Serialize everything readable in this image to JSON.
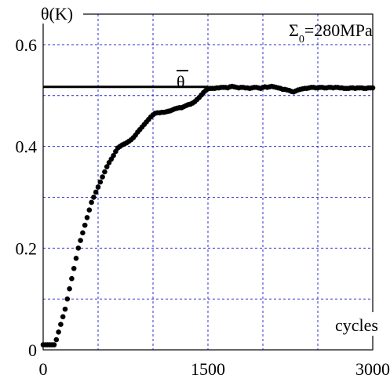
{
  "chart_data": {
    "type": "scatter",
    "ylabel": "θ(K)",
    "xlabel": "cycles",
    "annotation": "Σ₀=280MPa",
    "annotation_main": "Σ",
    "annotation_sub": "0",
    "annotation_rest": "=280MPa",
    "mean_label": "θ",
    "xlim": [
      0,
      3000
    ],
    "ylim": [
      0,
      0.66
    ],
    "x_ticks": [
      0,
      1500,
      3000
    ],
    "x_tick_labels": [
      "0",
      "1500",
      "3000"
    ],
    "y_ticks": [
      0,
      0.2,
      0.4,
      0.6
    ],
    "y_tick_labels": [
      "0",
      "0.2",
      "0.4",
      "0.6"
    ],
    "x_grid": [
      500,
      1000,
      1500,
      2000,
      2500
    ],
    "y_grid": [
      0.1,
      0.2,
      0.3,
      0.4,
      0.5,
      0.6
    ],
    "grid": true,
    "mean_value": 0.517,
    "mean_line_x_end": 1500,
    "series": [
      {
        "marker": "filled-circle",
        "color": "#000000",
        "x": [
          0,
          20,
          40,
          60,
          80,
          100,
          120,
          140,
          160,
          180,
          200,
          220,
          240,
          260,
          280,
          300,
          320,
          340,
          360,
          380,
          400,
          420,
          440,
          460,
          480,
          500,
          520,
          540,
          560,
          580,
          600,
          620,
          640,
          660,
          680,
          700,
          720,
          740,
          760,
          780,
          800,
          820,
          840,
          860,
          880,
          900,
          920,
          940,
          960,
          980,
          1000,
          1020,
          1040,
          1060,
          1080,
          1100,
          1120,
          1140,
          1160,
          1180,
          1200,
          1220,
          1240,
          1260,
          1280,
          1300,
          1320,
          1340,
          1360,
          1380,
          1400,
          1420,
          1440,
          1460,
          1480,
          1500,
          1520,
          1540,
          1560,
          1580,
          1600,
          1620,
          1640,
          1660,
          1680,
          1700,
          1720,
          1740,
          1760,
          1780,
          1800,
          1820,
          1840,
          1860,
          1880,
          1900,
          1920,
          1940,
          1960,
          1980,
          2000,
          2020,
          2040,
          2060,
          2080,
          2100,
          2120,
          2140,
          2160,
          2180,
          2200,
          2220,
          2240,
          2260,
          2280,
          2300,
          2320,
          2340,
          2360,
          2380,
          2400,
          2420,
          2440,
          2460,
          2480,
          2500,
          2520,
          2540,
          2560,
          2580,
          2600,
          2620,
          2640,
          2660,
          2680,
          2700,
          2720,
          2740,
          2760,
          2780,
          2800,
          2820,
          2840,
          2860,
          2880,
          2900,
          2920,
          2940,
          2960,
          2980,
          3000
        ],
        "y": [
          0.01,
          0.01,
          0.01,
          0.01,
          0.01,
          0.01,
          0.02,
          0.035,
          0.05,
          0.065,
          0.08,
          0.1,
          0.12,
          0.14,
          0.16,
          0.18,
          0.2,
          0.215,
          0.23,
          0.245,
          0.26,
          0.275,
          0.29,
          0.3,
          0.31,
          0.32,
          0.33,
          0.34,
          0.35,
          0.36,
          0.368,
          0.375,
          0.382,
          0.39,
          0.397,
          0.4,
          0.403,
          0.405,
          0.407,
          0.41,
          0.413,
          0.417,
          0.422,
          0.428,
          0.433,
          0.438,
          0.443,
          0.448,
          0.453,
          0.458,
          0.462,
          0.465,
          0.466,
          0.466,
          0.467,
          0.467,
          0.468,
          0.469,
          0.47,
          0.472,
          0.474,
          0.475,
          0.476,
          0.476,
          0.478,
          0.48,
          0.482,
          0.483,
          0.485,
          0.488,
          0.492,
          0.496,
          0.501,
          0.506,
          0.51,
          0.513,
          0.514,
          0.514,
          0.514,
          0.515,
          0.515,
          0.516,
          0.516,
          0.516,
          0.515,
          0.517,
          0.518,
          0.517,
          0.516,
          0.515,
          0.516,
          0.516,
          0.515,
          0.515,
          0.514,
          0.515,
          0.516,
          0.516,
          0.515,
          0.514,
          0.516,
          0.517,
          0.516,
          0.517,
          0.518,
          0.517,
          0.516,
          0.515,
          0.514,
          0.512,
          0.512,
          0.511,
          0.51,
          0.508,
          0.507,
          0.509,
          0.511,
          0.512,
          0.513,
          0.514,
          0.514,
          0.515,
          0.516,
          0.516,
          0.515,
          0.515,
          0.516,
          0.516,
          0.515,
          0.515,
          0.516,
          0.516,
          0.515,
          0.516,
          0.516,
          0.515,
          0.515,
          0.514,
          0.514,
          0.514,
          0.515,
          0.515,
          0.514,
          0.515,
          0.515,
          0.515,
          0.514,
          0.514,
          0.515,
          0.515,
          0.515
        ]
      }
    ]
  }
}
